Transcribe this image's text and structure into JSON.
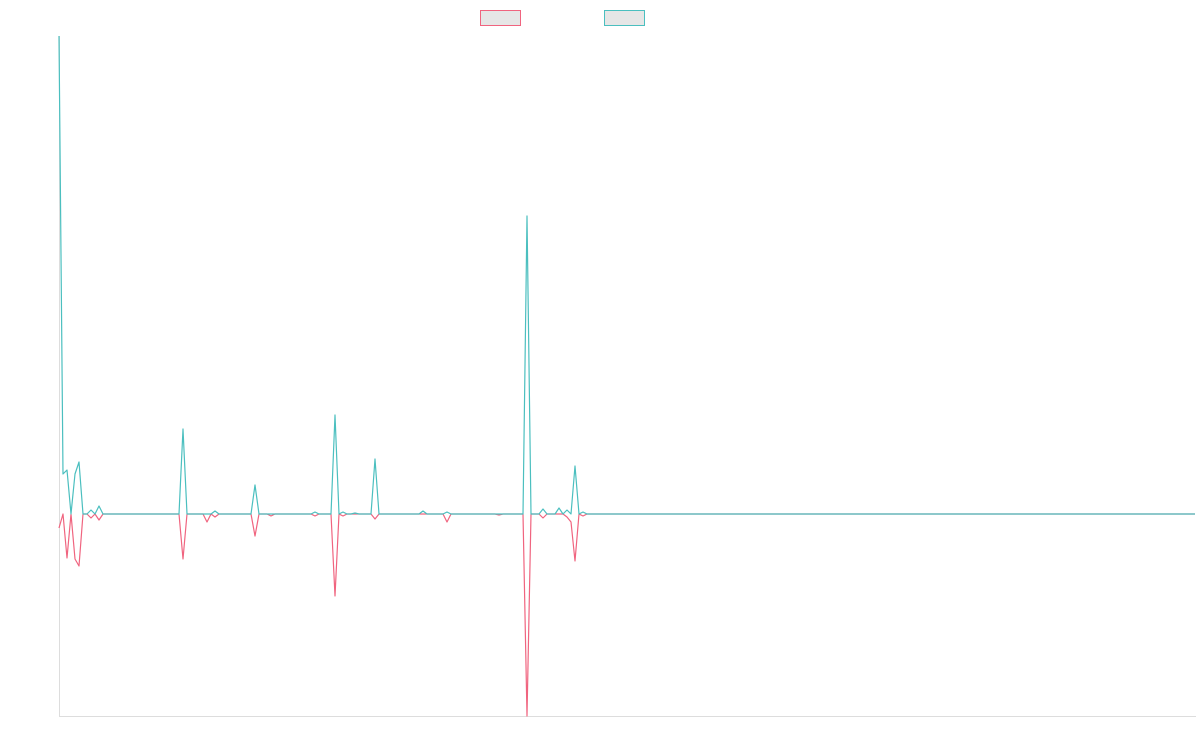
{
  "chart_data": {
    "type": "line",
    "ylim": [
      -2.02,
      4.78
    ],
    "series": [
      {
        "color": "#f0647f",
        "values": [
          -0.14,
          0,
          -0.44,
          0,
          -0.45,
          -0.52,
          0,
          0,
          -0.04,
          0,
          -0.06,
          0,
          0,
          0,
          0,
          0,
          0,
          0,
          0,
          0,
          0,
          0,
          0,
          0,
          0,
          0,
          0,
          0,
          0,
          0,
          0,
          -0.45,
          0,
          0,
          0,
          0,
          0,
          -0.08,
          0,
          -0.03,
          0,
          0,
          0,
          0,
          0,
          0,
          0,
          0,
          0,
          -0.22,
          0,
          0,
          0,
          -0.02,
          0,
          0,
          0,
          0,
          0,
          0,
          0,
          0,
          0,
          0,
          -0.02,
          0,
          0,
          0,
          0,
          -0.82,
          0,
          -0.02,
          0,
          0,
          0,
          0,
          0,
          0,
          0,
          -0.05,
          0,
          0,
          0,
          0,
          0,
          0,
          0,
          0,
          0,
          0,
          0,
          0,
          0,
          0,
          0,
          0,
          0,
          -0.08,
          0,
          0,
          0,
          0,
          0,
          0,
          0,
          0,
          0,
          0,
          0,
          0,
          -0.01,
          0,
          0,
          0,
          0,
          0,
          0,
          -2.02,
          0,
          0,
          0,
          -0.04,
          0,
          0,
          0,
          0,
          0,
          -0.03,
          -0.08,
          -0.47,
          0,
          -0.02,
          0,
          0,
          0,
          0,
          0,
          0,
          0,
          0,
          0,
          0,
          0,
          0,
          0,
          0,
          0,
          0,
          0,
          0,
          0,
          0,
          0,
          0,
          0,
          0,
          0,
          0,
          0,
          0,
          0,
          0,
          0,
          0,
          0,
          0,
          0,
          0,
          0,
          0,
          0,
          0,
          0,
          0,
          0,
          0,
          0,
          0,
          0,
          0,
          0,
          0,
          0,
          0,
          0,
          0,
          0,
          0,
          0,
          0,
          0,
          0,
          0,
          0,
          0,
          0,
          0,
          0,
          0,
          0,
          0,
          0,
          0,
          0,
          0,
          0,
          0,
          0,
          0,
          0,
          0,
          0,
          0,
          0,
          0,
          0,
          0,
          0,
          0,
          0,
          0,
          0,
          0,
          0,
          0,
          0,
          0,
          0,
          0,
          0,
          0,
          0,
          0,
          0,
          0,
          0,
          0,
          0,
          0,
          0,
          0,
          0,
          0,
          0,
          0,
          0,
          0,
          0,
          0,
          0,
          0,
          0,
          0,
          0,
          0,
          0,
          0,
          0,
          0,
          0,
          0,
          0,
          0,
          0,
          0,
          0,
          0,
          0,
          0,
          0,
          0,
          0,
          0,
          0,
          0,
          0,
          0,
          0,
          0,
          0,
          0,
          0,
          0,
          0,
          0
        ]
      },
      {
        "color": "#4bbfbf",
        "values": [
          4.78,
          0.4,
          0.44,
          0,
          0.4,
          0.52,
          0,
          0,
          0.04,
          0,
          0.08,
          0,
          0,
          0,
          0,
          0,
          0,
          0,
          0,
          0,
          0,
          0,
          0,
          0,
          0,
          0,
          0,
          0,
          0,
          0,
          0,
          0.85,
          0,
          0,
          0,
          0,
          0,
          0,
          0,
          0.03,
          0,
          0,
          0,
          0,
          0,
          0,
          0,
          0,
          0,
          0.29,
          0,
          0,
          0,
          0,
          0,
          0,
          0,
          0,
          0,
          0,
          0,
          0,
          0,
          0,
          0.02,
          0,
          0,
          0,
          0,
          0.99,
          0,
          0.02,
          0,
          0,
          0.01,
          0,
          0,
          0,
          0,
          0.55,
          0,
          0,
          0,
          0,
          0,
          0,
          0,
          0,
          0,
          0,
          0,
          0.03,
          0,
          0,
          0,
          0,
          0,
          0.02,
          0,
          0,
          0,
          0,
          0,
          0,
          0,
          0,
          0,
          0,
          0,
          0,
          0,
          0,
          0,
          0,
          0,
          0,
          0,
          2.98,
          0,
          0,
          0,
          0.05,
          0,
          0,
          0,
          0.06,
          0,
          0.04,
          0,
          0.48,
          0,
          0.02,
          0,
          0,
          0,
          0,
          0,
          0,
          0,
          0,
          0,
          0,
          0,
          0,
          0,
          0,
          0,
          0,
          0,
          0,
          0,
          0,
          0,
          0,
          0,
          0,
          0,
          0,
          0,
          0,
          0,
          0,
          0,
          0,
          0,
          0,
          0,
          0,
          0,
          0,
          0,
          0,
          0,
          0,
          0,
          0,
          0,
          0,
          0,
          0,
          0,
          0,
          0,
          0,
          0,
          0,
          0,
          0,
          0,
          0,
          0,
          0,
          0,
          0,
          0,
          0,
          0,
          0,
          0,
          0,
          0,
          0,
          0,
          0,
          0,
          0,
          0,
          0,
          0,
          0,
          0,
          0,
          0,
          0,
          0,
          0,
          0,
          0,
          0,
          0,
          0,
          0,
          0,
          0,
          0,
          0,
          0,
          0,
          0,
          0,
          0,
          0,
          0,
          0,
          0,
          0,
          0,
          0,
          0,
          0,
          0,
          0,
          0,
          0,
          0,
          0,
          0,
          0,
          0,
          0,
          0,
          0,
          0,
          0,
          0,
          0,
          0,
          0,
          0,
          0,
          0,
          0,
          0,
          0,
          0,
          0,
          0,
          0,
          0,
          0,
          0,
          0,
          0,
          0,
          0,
          0,
          0,
          0,
          0,
          0,
          0,
          0,
          0,
          0,
          0
        ]
      }
    ]
  }
}
